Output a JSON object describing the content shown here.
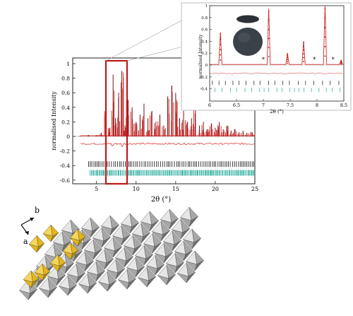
{
  "chart_data": [
    {
      "type": "line",
      "panel": "main",
      "title": "",
      "xlabel": "2θ (°)",
      "ylabel": "normalised Intensity",
      "xlim": [
        2,
        25
      ],
      "ylim": [
        -0.6,
        1.05
      ],
      "xticks": [
        "5",
        "10",
        "15",
        "20",
        "25"
      ],
      "yticks": [
        "1",
        "0.8",
        "0.6",
        "0.4",
        "0.2",
        "0",
        "-0.2",
        "-0.4",
        "-0.6"
      ],
      "grid": false,
      "legend": "none",
      "highlight_region": [
        5.8,
        8.5
      ],
      "series": [
        {
          "role": "observed",
          "color": "#d42a2a",
          "x": [
            3,
            4,
            5,
            5.6,
            6.2,
            6.7,
            7.1,
            7.4,
            7.8,
            8.2,
            8.6,
            9.0,
            9.5,
            10,
            10.5,
            11,
            11.5,
            12,
            12.5,
            13,
            13.5,
            14,
            14.5,
            15,
            15.5,
            16,
            16.5,
            17,
            17.5,
            18,
            18.5,
            19,
            19.5,
            20,
            20.5,
            21,
            21.5,
            22,
            22.5,
            23,
            23.5,
            24,
            24.5,
            25
          ],
          "y": [
            0.01,
            0.02,
            0.02,
            0.05,
            0.35,
            0.12,
            0.85,
            0.25,
            0.6,
            0.9,
            0.15,
            0.5,
            0.4,
            0.2,
            0.3,
            0.45,
            0.25,
            0.35,
            0.2,
            0.3,
            0.15,
            0.55,
            0.7,
            0.6,
            0.25,
            0.35,
            0.2,
            0.25,
            0.5,
            0.15,
            0.2,
            0.1,
            0.18,
            0.12,
            0.2,
            0.1,
            0.15,
            0.08,
            0.1,
            0.06,
            0.08,
            0.05,
            0.06,
            0.04
          ]
        },
        {
          "role": "difference",
          "color": "#d42a2a",
          "offset": -0.1
        },
        {
          "role": "tick marks phase 1",
          "color": "#111111",
          "y": -0.38
        },
        {
          "role": "tick marks phase 2",
          "color": "#17a595",
          "y": -0.5
        }
      ]
    },
    {
      "type": "line",
      "panel": "inset",
      "xlabel": "2θ (°)",
      "ylabel": "normalised Intensity",
      "xlim": [
        6,
        8.5
      ],
      "ylim": [
        -0.45,
        1.0
      ],
      "xticks": [
        "6",
        "6.5",
        "7",
        "7.5",
        "8",
        "8.5"
      ],
      "yticks": [
        "1",
        "0.8",
        "0.6",
        "0.4",
        "0.2",
        "0",
        "-0.2",
        "-0.4"
      ],
      "annotations": [
        "*",
        "*",
        "*"
      ],
      "peaks": [
        {
          "x": 6.2,
          "y": 0.55
        },
        {
          "x": 7.1,
          "y": 0.95
        },
        {
          "x": 7.45,
          "y": 0.2
        },
        {
          "x": 7.75,
          "y": 0.4
        },
        {
          "x": 8.15,
          "y": 1.0
        },
        {
          "x": 8.45,
          "y": 0.08
        }
      ],
      "star_x": [
        7.0,
        7.95,
        8.3
      ]
    }
  ],
  "structure": {
    "axis_a": "a",
    "axis_b": "b",
    "colors": {
      "octahedra": "#a7a7a7",
      "tetrahedra": "#e4b51c"
    }
  },
  "colors": {
    "highlight_box": "#c01818",
    "observed": "#d42a2a",
    "phase2": "#17a595"
  }
}
